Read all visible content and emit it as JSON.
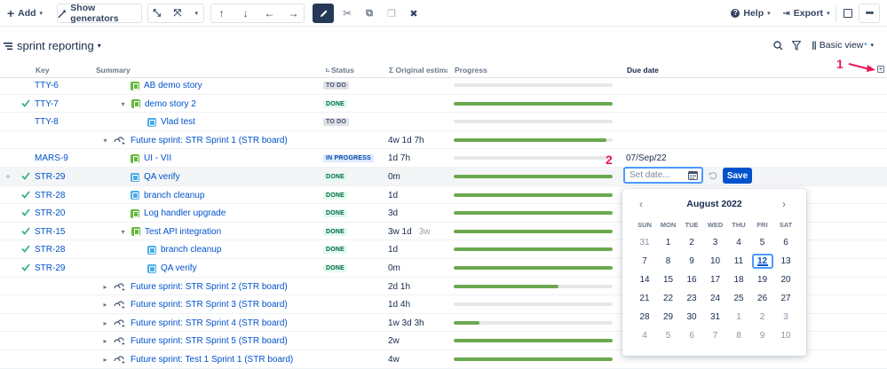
{
  "toolbar": {
    "add_label": "Add",
    "generators_label": "Show generators",
    "help_label": "Help",
    "export_label": "Export"
  },
  "title": "sprint reporting",
  "view_label": "Basic view",
  "view_marker": "*",
  "columns": {
    "key": "Key",
    "summary": "Summary",
    "status": "Status",
    "estimate": "Σ Original estimate",
    "progress": "Progress",
    "due": "Due date"
  },
  "rows": [
    {
      "key": "TTY-6",
      "summary": "AB demo story",
      "indent": 0,
      "type": "story",
      "chevron": "",
      "status": "TO DO",
      "status_kind": "todo",
      "estimate": "",
      "est_extra": "",
      "progress": 0,
      "due": "",
      "check": false
    },
    {
      "key": "TTY-7",
      "summary": "demo story 2",
      "indent": 0,
      "type": "story",
      "chevron": "▾",
      "status": "DONE",
      "status_kind": "done",
      "estimate": "",
      "est_extra": "",
      "progress": 100,
      "due": "",
      "check": true
    },
    {
      "key": "TTY-8",
      "summary": "Vlad test",
      "indent": 1,
      "type": "task",
      "chevron": "",
      "status": "TO DO",
      "status_kind": "todo",
      "estimate": "",
      "est_extra": "",
      "progress": 0,
      "due": "",
      "check": false
    },
    {
      "key": "",
      "summary": "Future sprint: STR Sprint 1 (STR board)",
      "indent": -1,
      "type": "sprint",
      "chevron": "▾",
      "status": "",
      "status_kind": "",
      "estimate": "4w 1d 7h",
      "est_extra": "",
      "progress": 96,
      "due": "",
      "check": false
    },
    {
      "key": "MARS-9",
      "summary": "UI - VII",
      "indent": 0,
      "type": "story",
      "chevron": "",
      "status": "IN PROGRESS",
      "status_kind": "prog",
      "estimate": "1d 7h",
      "est_extra": "",
      "progress": 0,
      "due": "07/Sep/22",
      "check": false
    },
    {
      "key": "STR-29",
      "summary": "QA verify",
      "indent": 0,
      "type": "task",
      "chevron": "",
      "status": "DONE",
      "status_kind": "done",
      "estimate": "0m",
      "est_extra": "",
      "progress": 100,
      "due": "",
      "check": true,
      "selected": true
    },
    {
      "key": "STR-28",
      "summary": "branch cleanup",
      "indent": 0,
      "type": "task",
      "chevron": "",
      "status": "DONE",
      "status_kind": "done",
      "estimate": "1d",
      "est_extra": "",
      "progress": 100,
      "due": "",
      "check": true
    },
    {
      "key": "STR-20",
      "summary": "Log handler upgrade",
      "indent": 0,
      "type": "story",
      "chevron": "",
      "status": "DONE",
      "status_kind": "done",
      "estimate": "3d",
      "est_extra": "",
      "progress": 100,
      "due": "",
      "check": true
    },
    {
      "key": "STR-15",
      "summary": "Test API integration",
      "indent": 0,
      "type": "story",
      "chevron": "▾",
      "status": "DONE",
      "status_kind": "done",
      "estimate": "3w 1d",
      "est_extra": "3w",
      "progress": 100,
      "due": "",
      "check": true
    },
    {
      "key": "STR-28",
      "summary": "branch cleanup",
      "indent": 1,
      "type": "task",
      "chevron": "",
      "status": "DONE",
      "status_kind": "done",
      "estimate": "1d",
      "est_extra": "",
      "progress": 100,
      "due": "",
      "check": true
    },
    {
      "key": "STR-29",
      "summary": "QA verify",
      "indent": 1,
      "type": "task",
      "chevron": "",
      "status": "DONE",
      "status_kind": "done",
      "estimate": "0m",
      "est_extra": "",
      "progress": 100,
      "due": "",
      "check": true
    },
    {
      "key": "",
      "summary": "Future sprint: STR Sprint 2 (STR board)",
      "indent": -1,
      "type": "sprint",
      "chevron": "▸",
      "status": "",
      "status_kind": "",
      "estimate": "2d 1h",
      "est_extra": "",
      "progress": 66,
      "due": "",
      "check": false
    },
    {
      "key": "",
      "summary": "Future sprint: STR Sprint 3 (STR board)",
      "indent": -1,
      "type": "sprint",
      "chevron": "▸",
      "status": "",
      "status_kind": "",
      "estimate": "1d 4h",
      "est_extra": "",
      "progress": 0,
      "due": "",
      "check": false
    },
    {
      "key": "",
      "summary": "Future sprint: STR Sprint 4 (STR board)",
      "indent": -1,
      "type": "sprint",
      "chevron": "▸",
      "status": "",
      "status_kind": "",
      "estimate": "1w 3d 3h",
      "est_extra": "",
      "progress": 16,
      "due": "",
      "check": false
    },
    {
      "key": "",
      "summary": "Future sprint: STR Sprint 5 (STR board)",
      "indent": -1,
      "type": "sprint",
      "chevron": "▸",
      "status": "",
      "status_kind": "",
      "estimate": "2w",
      "est_extra": "",
      "progress": 100,
      "due": "",
      "check": false
    },
    {
      "key": "",
      "summary": "Future sprint: Test 1 Sprint 1 (STR board)",
      "indent": -1,
      "type": "sprint",
      "chevron": "▸",
      "status": "",
      "status_kind": "",
      "estimate": "4w",
      "est_extra": "",
      "progress": 100,
      "due": "",
      "check": false
    }
  ],
  "date_editor": {
    "placeholder": "Set date...",
    "save_label": "Save",
    "annotation_1": "1",
    "annotation_2": "2"
  },
  "calendar": {
    "title": "August 2022",
    "weekdays": [
      "SUN",
      "MON",
      "TUE",
      "WED",
      "THU",
      "FRI",
      "SAT"
    ],
    "weeks": [
      [
        "31",
        "1",
        "2",
        "3",
        "4",
        "5",
        "6"
      ],
      [
        "7",
        "8",
        "9",
        "10",
        "11",
        "12",
        "13"
      ],
      [
        "14",
        "15",
        "16",
        "17",
        "18",
        "19",
        "20"
      ],
      [
        "21",
        "22",
        "23",
        "24",
        "25",
        "26",
        "27"
      ],
      [
        "28",
        "29",
        "30",
        "31",
        "1",
        "2",
        "3"
      ],
      [
        "4",
        "5",
        "6",
        "7",
        "8",
        "9",
        "10"
      ]
    ],
    "selected_day": "12"
  },
  "colors": {
    "accent": "#0052cc",
    "progress": "#6aa84f",
    "annotation": "#e8175d"
  }
}
